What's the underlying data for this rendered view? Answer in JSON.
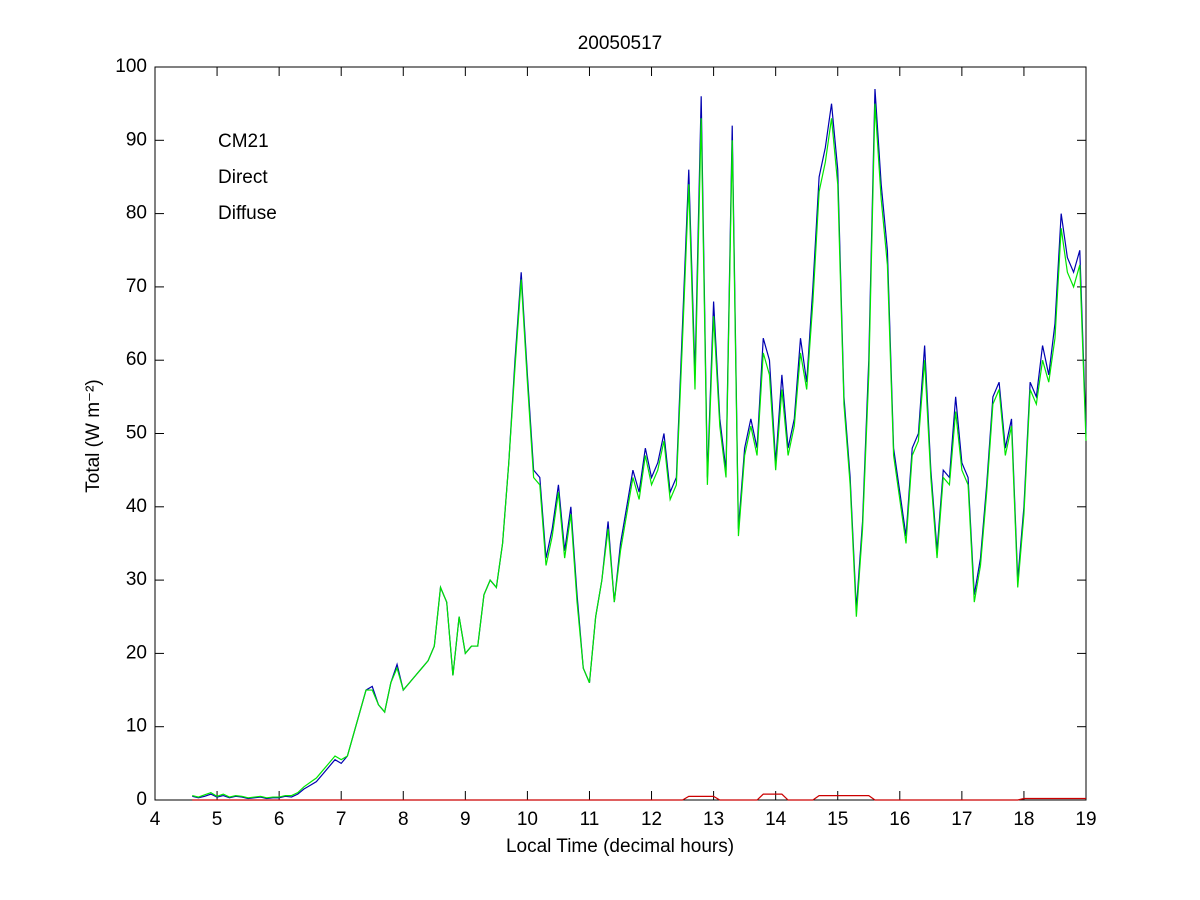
{
  "chart_data": {
    "type": "line",
    "title": "20050517",
    "xlabel": "Local Time (decimal hours)",
    "ylabel": "Total (W m⁻²)",
    "xlim": [
      4,
      19
    ],
    "xticks": [
      4,
      5,
      6,
      7,
      8,
      9,
      10,
      11,
      12,
      13,
      14,
      15,
      16,
      17,
      18,
      19
    ],
    "ylim": [
      0,
      100
    ],
    "yticks": [
      0,
      10,
      20,
      30,
      40,
      50,
      60,
      70,
      80,
      90,
      100
    ],
    "legend": "upper left",
    "x": [
      4.6,
      4.7,
      4.8,
      4.9,
      5.0,
      5.1,
      5.2,
      5.3,
      5.4,
      5.5,
      5.6,
      5.7,
      5.8,
      5.9,
      6.0,
      6.1,
      6.2,
      6.3,
      6.4,
      6.5,
      6.6,
      6.7,
      6.8,
      6.9,
      7.0,
      7.1,
      7.2,
      7.3,
      7.4,
      7.5,
      7.6,
      7.7,
      7.8,
      7.9,
      8.0,
      8.1,
      8.2,
      8.3,
      8.4,
      8.5,
      8.6,
      8.7,
      8.8,
      8.9,
      9.0,
      9.1,
      9.2,
      9.3,
      9.4,
      9.5,
      9.6,
      9.7,
      9.8,
      9.9,
      10.0,
      10.1,
      10.2,
      10.3,
      10.4,
      10.5,
      10.6,
      10.7,
      10.8,
      10.9,
      11.0,
      11.1,
      11.2,
      11.3,
      11.4,
      11.5,
      11.6,
      11.7,
      11.8,
      11.9,
      12.0,
      12.1,
      12.2,
      12.3,
      12.4,
      12.5,
      12.6,
      12.7,
      12.8,
      12.9,
      13.0,
      13.1,
      13.2,
      13.3,
      13.4,
      13.5,
      13.6,
      13.7,
      13.8,
      13.9,
      14.0,
      14.1,
      14.2,
      14.3,
      14.4,
      14.5,
      14.6,
      14.7,
      14.8,
      14.9,
      15.0,
      15.1,
      15.2,
      15.3,
      15.4,
      15.5,
      15.6,
      15.7,
      15.8,
      15.9,
      16.0,
      16.1,
      16.2,
      16.3,
      16.4,
      16.5,
      16.6,
      16.7,
      16.8,
      16.9,
      17.0,
      17.1,
      17.2,
      17.3,
      17.4,
      17.5,
      17.6,
      17.7,
      17.8,
      17.9,
      18.0,
      18.1,
      18.2,
      18.3,
      18.4,
      18.5,
      18.6,
      18.7,
      18.8,
      18.9,
      19.0
    ],
    "series": [
      {
        "name": "CM21",
        "color": "#0000b0",
        "values": [
          0.5,
          0.3,
          0.5,
          0.8,
          0.4,
          0.6,
          0.3,
          0.5,
          0.4,
          0.2,
          0.3,
          0.4,
          0.2,
          0.3,
          0.3,
          0.5,
          0.4,
          0.8,
          1.5,
          2,
          2.5,
          3.5,
          4.5,
          5.5,
          5,
          6,
          9,
          12,
          15,
          15.5,
          13,
          12,
          16,
          18.5,
          15,
          16,
          17,
          18,
          19,
          21,
          29,
          27,
          17,
          25,
          20,
          21,
          21,
          28,
          30,
          29,
          35,
          46,
          60,
          72,
          58,
          45,
          44,
          33,
          37,
          43,
          34,
          40,
          28,
          18,
          16,
          25,
          30,
          38,
          27,
          35,
          40,
          45,
          42,
          48,
          44,
          46,
          50,
          42,
          44,
          65,
          86,
          58,
          96,
          44,
          68,
          52,
          45,
          92,
          37,
          48,
          52,
          48,
          63,
          60,
          46,
          58,
          48,
          52,
          63,
          57,
          70,
          85,
          89,
          95,
          86,
          55,
          44,
          26,
          38,
          60,
          97,
          84,
          75,
          48,
          42,
          36,
          48,
          50,
          62,
          45,
          34,
          45,
          44,
          55,
          46,
          44,
          28,
          33,
          43,
          55,
          57,
          48,
          52,
          30,
          40,
          57,
          55,
          62,
          58,
          65,
          80,
          74,
          72,
          75,
          50
        ]
      },
      {
        "name": "Direct",
        "color": "#cc0000",
        "values": [
          0,
          0,
          0,
          0,
          0,
          0,
          0,
          0,
          0,
          0,
          0,
          0,
          0,
          0,
          0,
          0,
          0,
          0,
          0,
          0,
          0,
          0,
          0,
          0,
          0,
          0,
          0,
          0,
          0,
          0,
          0,
          0,
          0,
          0,
          0,
          0,
          0,
          0,
          0,
          0,
          0,
          0,
          0,
          0,
          0,
          0,
          0,
          0,
          0,
          0,
          0,
          0,
          0,
          0,
          0,
          0,
          0,
          0,
          0,
          0,
          0,
          0,
          0,
          0,
          0,
          0,
          0,
          0,
          0,
          0,
          0,
          0,
          0,
          0,
          0,
          0,
          0,
          0,
          0,
          0,
          0.5,
          0.5,
          0.5,
          0.5,
          0.5,
          0,
          0,
          0,
          0,
          0,
          0,
          0,
          0.8,
          0.8,
          0.8,
          0.8,
          0,
          0,
          0,
          0,
          0,
          0.6,
          0.6,
          0.6,
          0.6,
          0.6,
          0.6,
          0.6,
          0.6,
          0.6,
          0,
          0,
          0,
          0,
          0,
          0,
          0,
          0,
          0,
          0,
          0,
          0,
          0,
          0,
          0,
          0,
          0,
          0,
          0,
          0,
          0,
          0,
          0,
          0,
          0.2,
          0.2,
          0.2,
          0.2,
          0.2,
          0.2,
          0.2,
          0.2,
          0.2,
          0.2,
          0.2
        ]
      },
      {
        "name": "Diffuse",
        "color": "#00e600",
        "values": [
          0.6,
          0.4,
          0.7,
          1,
          0.5,
          0.8,
          0.4,
          0.6,
          0.5,
          0.3,
          0.4,
          0.5,
          0.3,
          0.4,
          0.4,
          0.6,
          0.6,
          1,
          1.8,
          2.4,
          3,
          4,
          5,
          6,
          5.5,
          6,
          9,
          12,
          15,
          15,
          13,
          12,
          16,
          18,
          15,
          16,
          17,
          18,
          19,
          21,
          29,
          27,
          17,
          25,
          20,
          21,
          21,
          28,
          30,
          29,
          35,
          46,
          59,
          71,
          57,
          44,
          43,
          32,
          36,
          42,
          33,
          39,
          27,
          18,
          16,
          25,
          30,
          37,
          27,
          34,
          39,
          44,
          41,
          47,
          43,
          45,
          49,
          41,
          43,
          63,
          84,
          56,
          93,
          43,
          66,
          51,
          44,
          90,
          36,
          47,
          51,
          47,
          61,
          58,
          45,
          56,
          47,
          51,
          61,
          56,
          68,
          83,
          87,
          93,
          84,
          54,
          43,
          25,
          37,
          58,
          95,
          82,
          73,
          47,
          41,
          35,
          47,
          49,
          60,
          44,
          33,
          44,
          43,
          53,
          45,
          43,
          27,
          32,
          42,
          54,
          56,
          47,
          51,
          29,
          39,
          56,
          54,
          60,
          57,
          63,
          78,
          72,
          70,
          73,
          49
        ]
      }
    ]
  }
}
